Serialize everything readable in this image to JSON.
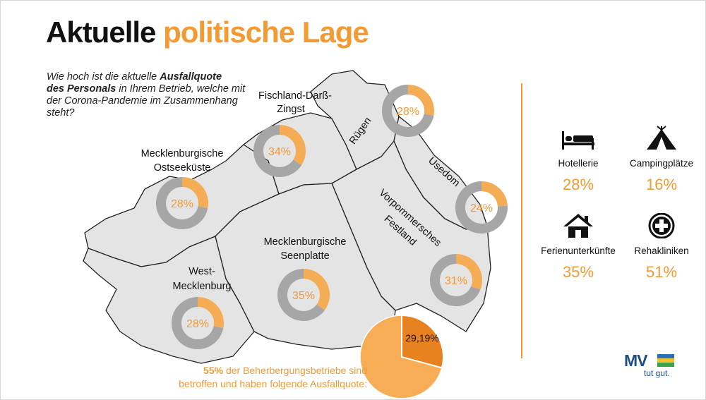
{
  "header": {
    "title_part1": "Aktuelle",
    "title_part2": "politische Lage"
  },
  "question": {
    "part1": "Wie hoch ist die aktuelle ",
    "bold1": "Ausfallquote",
    "bold2": "des Personals",
    "part2": " in Ihrem Betrieb, welche mit der Corona-Pandemie im Zusammenhang steht?"
  },
  "chart_data": [
    {
      "type": "pie",
      "title": "",
      "series": [
        {
          "name": "Fischland-Darß-Zingst",
          "value": 34,
          "label": "34%"
        },
        {
          "name": "Rügen",
          "value": 28,
          "label": "28%"
        },
        {
          "name": "Mecklenburgische Ostseeküste",
          "value": 28,
          "label": "28%"
        },
        {
          "name": "Usedom",
          "value": 24,
          "label": "24%"
        },
        {
          "name": "Vorpommersches Festland",
          "value": 31,
          "label": "31%"
        },
        {
          "name": "Mecklenburgische Seenplatte",
          "value": 35,
          "label": "35%"
        },
        {
          "name": "West-Mecklenburg",
          "value": 28,
          "label": "28%"
        }
      ],
      "region_labels": {
        "fischland_line1": "Fischland-Darß-",
        "fischland_line2": "Zingst",
        "ruegen": "Rügen",
        "ostsee_line1": "Mecklenburgische",
        "ostsee_line2": "Ostseeküste",
        "usedom": "Usedom",
        "vorpommern_line1": "Vorpommersches",
        "vorpommern_line2": "Festland",
        "seenplatte_line1": "Mecklenburgische",
        "seenplatte_line2": "Seenplatte",
        "west_line1": "West-",
        "west_line2": "Mecklenburg"
      },
      "colors": {
        "highlight": "#f5ad55",
        "remainder": "#a6a6a6",
        "map": "#e4e4e4"
      }
    },
    {
      "type": "pie",
      "title": "",
      "series": [
        {
          "name": "Ausfallquote",
          "value": 29.19,
          "label": "29,19%"
        }
      ],
      "colors": {
        "slice": "#e8811f",
        "remainder": "#f7ac56"
      }
    }
  ],
  "note": {
    "bold": "55%",
    "line1_rest": " der Beherbergungsbetriebe sind",
    "line2": "betroffen und haben folgende Ausfallquote:"
  },
  "categories": [
    {
      "label": "Hotellerie",
      "value": "28%",
      "icon": "bed-icon"
    },
    {
      "label": "Campingplätze",
      "value": "16%",
      "icon": "tent-icon"
    },
    {
      "label": "Ferienunterkünfte",
      "value": "35%",
      "icon": "house-icon"
    },
    {
      "label": "Rehakliniken",
      "value": "51%",
      "icon": "medical-cross-icon"
    }
  ],
  "logo": {
    "text": "MV",
    "slogan": "tut gut."
  }
}
